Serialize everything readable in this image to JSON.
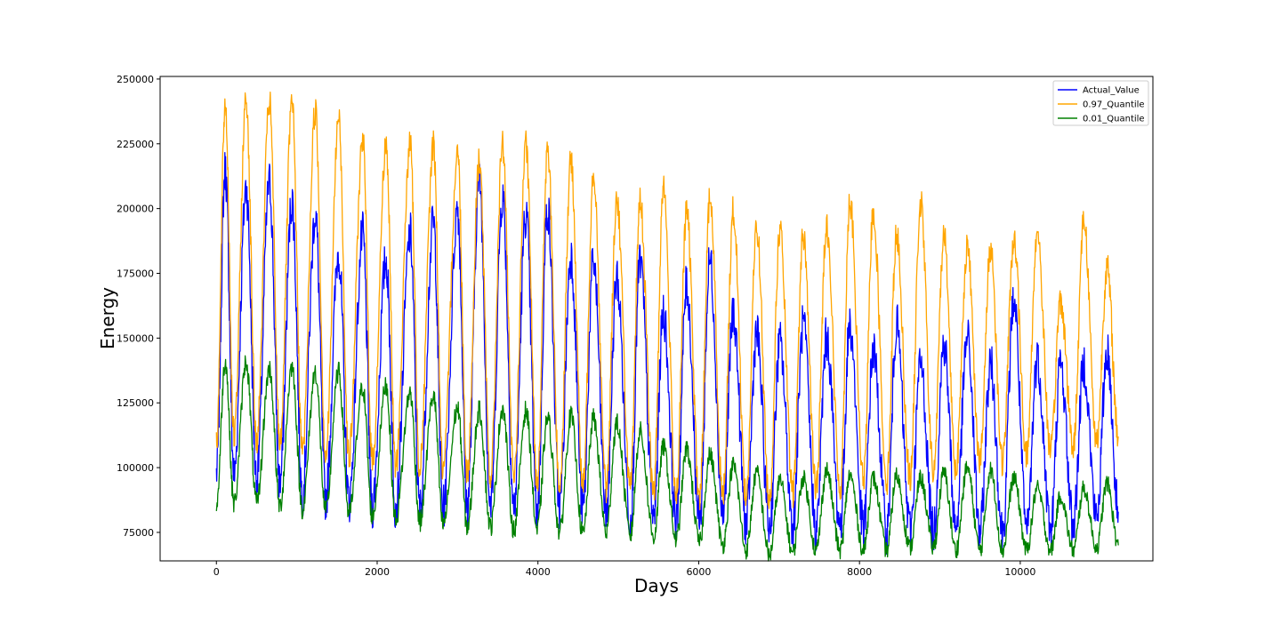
{
  "chart_data": {
    "type": "line",
    "title": "",
    "xlabel": "Days",
    "ylabel": "Energy",
    "xlim": [
      -700,
      11650
    ],
    "ylim": [
      64000,
      251000
    ],
    "xticks": [
      0,
      2000,
      4000,
      6000,
      8000,
      10000
    ],
    "yticks": [
      75000,
      100000,
      125000,
      150000,
      175000,
      200000,
      225000,
      250000
    ],
    "grid": false,
    "legend_position": "top-right",
    "series": [
      {
        "name": "Actual_Value",
        "color": "#0000ff",
        "x": [
          0,
          110,
          220,
          370,
          500,
          660,
          790,
          940,
          1070,
          1230,
          1360,
          1520,
          1650,
          1820,
          1940,
          2110,
          2230,
          2410,
          2530,
          2700,
          2820,
          3000,
          3120,
          3270,
          3410,
          3560,
          3700,
          3850,
          3990,
          4120,
          4270,
          4410,
          4560,
          4690,
          4850,
          4980,
          5150,
          5270,
          5440,
          5560,
          5720,
          5850,
          6010,
          6140,
          6300,
          6430,
          6590,
          6720,
          6880,
          7010,
          7170,
          7300,
          7460,
          7590,
          7760,
          7880,
          8050,
          8170,
          8340,
          8460,
          8630,
          8760,
          8920,
          9050,
          9200,
          9340,
          9500,
          9630,
          9780,
          9920,
          10080,
          10210,
          10380,
          10500,
          10660,
          10790,
          10950,
          11080,
          11220
        ],
        "values": [
          98000,
          215000,
          97000,
          208000,
          96000,
          210000,
          94000,
          203000,
          90000,
          198000,
          88000,
          183000,
          87000,
          190000,
          85000,
          180000,
          85000,
          190000,
          84000,
          195000,
          84000,
          200000,
          85000,
          212000,
          85000,
          205000,
          84000,
          198000,
          83000,
          200000,
          85000,
          182000,
          84000,
          180000,
          82000,
          173000,
          80000,
          180000,
          80000,
          160000,
          80000,
          170000,
          79000,
          180000,
          82000,
          160000,
          78000,
          152000,
          77000,
          148000,
          78000,
          155000,
          76000,
          150000,
          78000,
          155000,
          76000,
          145000,
          75000,
          155000,
          76000,
          140000,
          75000,
          148000,
          77000,
          150000,
          75000,
          140000,
          75000,
          165000,
          75000,
          142000,
          76000,
          140000,
          78000,
          140000,
          80000,
          145000,
          83000
        ]
      },
      {
        "name": "0.97_Quantile",
        "color": "#ffa500",
        "x": [
          0,
          110,
          220,
          370,
          500,
          660,
          790,
          940,
          1070,
          1230,
          1360,
          1520,
          1650,
          1820,
          1940,
          2110,
          2230,
          2410,
          2530,
          2700,
          2820,
          3000,
          3120,
          3270,
          3410,
          3560,
          3700,
          3850,
          3990,
          4120,
          4270,
          4410,
          4560,
          4690,
          4850,
          4980,
          5150,
          5270,
          5440,
          5560,
          5720,
          5850,
          6010,
          6140,
          6300,
          6430,
          6590,
          6720,
          6880,
          7010,
          7170,
          7300,
          7460,
          7590,
          7760,
          7880,
          8050,
          8170,
          8340,
          8460,
          8630,
          8760,
          8920,
          9050,
          9200,
          9340,
          9500,
          9630,
          9780,
          9920,
          10080,
          10210,
          10380,
          10500,
          10660,
          10790,
          10950,
          11080,
          11220
        ],
        "values": [
          110000,
          240000,
          112000,
          242000,
          110000,
          241000,
          110000,
          240000,
          106000,
          238000,
          105000,
          235000,
          104000,
          227000,
          102000,
          225000,
          100000,
          225000,
          100000,
          225000,
          98000,
          222000,
          98000,
          219000,
          96000,
          225000,
          96000,
          224000,
          95000,
          222000,
          93000,
          218000,
          92000,
          214000,
          92000,
          204000,
          92000,
          203000,
          90000,
          209000,
          90000,
          199000,
          88000,
          204000,
          89000,
          199000,
          89000,
          193000,
          87000,
          192000,
          90000,
          190000,
          92000,
          194000,
          92000,
          203000,
          95000,
          199000,
          95000,
          190000,
          96000,
          202000,
          98000,
          190000,
          100000,
          185000,
          103000,
          185000,
          102000,
          188000,
          105000,
          191000,
          106000,
          165000,
          108000,
          196000,
          110000,
          177000,
          112000
        ]
      },
      {
        "name": "0.01_Quantile",
        "color": "#008000",
        "x": [
          0,
          110,
          220,
          370,
          500,
          660,
          790,
          940,
          1070,
          1230,
          1360,
          1520,
          1650,
          1820,
          1940,
          2110,
          2230,
          2410,
          2530,
          2700,
          2820,
          3000,
          3120,
          3270,
          3410,
          3560,
          3700,
          3850,
          3990,
          4120,
          4270,
          4410,
          4560,
          4690,
          4850,
          4980,
          5150,
          5270,
          5440,
          5560,
          5720,
          5850,
          6010,
          6140,
          6300,
          6430,
          6590,
          6720,
          6880,
          7010,
          7170,
          7300,
          7460,
          7590,
          7760,
          7880,
          8050,
          8170,
          8340,
          8460,
          8630,
          8760,
          8920,
          9050,
          9200,
          9340,
          9500,
          9630,
          9780,
          9920,
          10080,
          10210,
          10380,
          10500,
          10660,
          10790,
          10950,
          11080,
          11220
        ],
        "values": [
          85000,
          141000,
          86000,
          141000,
          86000,
          138000,
          85000,
          139000,
          84000,
          137000,
          83000,
          137000,
          82000,
          131000,
          81000,
          132000,
          80000,
          129000,
          79000,
          128000,
          78000,
          123000,
          77000,
          122000,
          77000,
          123000,
          76000,
          122000,
          76000,
          119000,
          75000,
          120000,
          74000,
          119000,
          75000,
          117000,
          74000,
          114000,
          73000,
          108000,
          72000,
          107000,
          71000,
          105000,
          70000,
          101000,
          68000,
          98000,
          66000,
          95000,
          67000,
          96000,
          68000,
          99000,
          68000,
          97000,
          68000,
          96000,
          68000,
          97000,
          69000,
          96000,
          69000,
          98000,
          68000,
          100000,
          68000,
          99000,
          68000,
          96000,
          68000,
          92000,
          68000,
          89000,
          68000,
          92000,
          69000,
          94000,
          70000
        ]
      }
    ]
  }
}
